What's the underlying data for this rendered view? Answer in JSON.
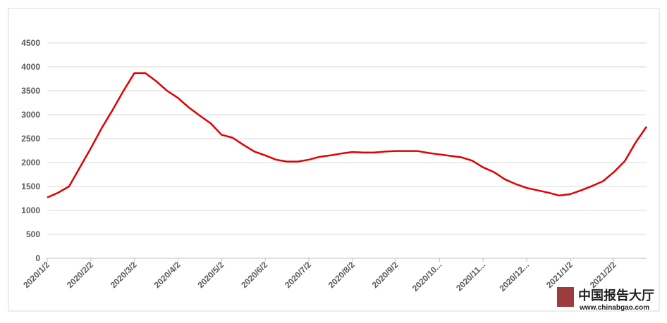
{
  "chart_data": {
    "type": "line",
    "categories": [
      "2020/1/2",
      null,
      null,
      null,
      "2020/2/2",
      null,
      null,
      null,
      "2020/3/2",
      null,
      null,
      null,
      "2020/4/2",
      null,
      null,
      null,
      "2020/5/2",
      null,
      null,
      null,
      "2020/6/2",
      null,
      null,
      null,
      "2020/7/2",
      null,
      null,
      null,
      "2020/8/2",
      null,
      null,
      null,
      "2020/9/2",
      null,
      null,
      null,
      "2020/10...",
      null,
      null,
      null,
      "2020/11...",
      null,
      null,
      null,
      "2020/12...",
      null,
      null,
      null,
      "2021/1/2",
      null,
      null,
      null,
      "2021/2/2",
      null,
      null,
      null
    ],
    "series": [
      {
        "color": "#e00000",
        "values": [
          1270,
          1370,
          1500,
          1900,
          2300,
          2720,
          3100,
          3500,
          3870,
          3870,
          3700,
          3500,
          3350,
          3150,
          2980,
          2820,
          2580,
          2520,
          2370,
          2230,
          2150,
          2060,
          2020,
          2020,
          2060,
          2120,
          2150,
          2190,
          2220,
          2210,
          2210,
          2230,
          2240,
          2240,
          2240,
          2200,
          2170,
          2140,
          2110,
          2040,
          1900,
          1800,
          1650,
          1550,
          1470,
          1420,
          1370,
          1310,
          1340,
          1420,
          1510,
          1610,
          1800,
          2030,
          2420,
          2750
        ]
      }
    ],
    "ylim": [
      0,
      4500
    ],
    "yticks": [
      0,
      500,
      1000,
      1500,
      2000,
      2500,
      3000,
      3500,
      4000,
      4500
    ],
    "grid": true,
    "watermark": [
      "中国报告大厅",
      "www.chinabgao.com"
    ]
  }
}
